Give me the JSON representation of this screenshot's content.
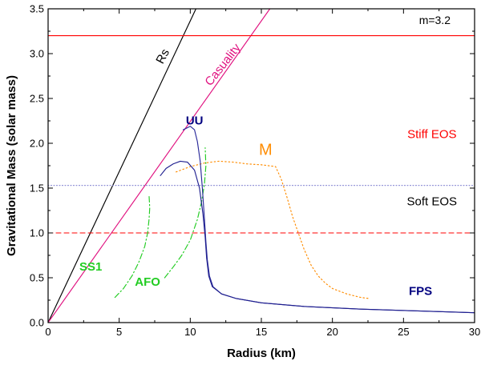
{
  "chart_data": {
    "type": "line",
    "xlabel": "Radius (km)",
    "ylabel": "Gravitational Mass (solar mass)",
    "xlim": [
      0,
      30
    ],
    "ylim": [
      0,
      3.5
    ],
    "xticks": [
      0,
      5,
      10,
      15,
      20,
      25,
      30
    ],
    "yticks": [
      0.0,
      0.5,
      1.0,
      1.5,
      2.0,
      2.5,
      3.0,
      3.5
    ],
    "xtick_labels": [
      "0",
      "5",
      "10",
      "15",
      "20",
      "25",
      "30"
    ],
    "ytick_labels": [
      "0.0",
      "0.5",
      "1.0",
      "1.5",
      "2.0",
      "2.5",
      "3.0",
      "3.5"
    ],
    "colors": {
      "black": "#000000",
      "red": "#ff0000",
      "causality": "#e0107f",
      "navy": "#000080",
      "green": "#22cc22",
      "orange": "#ff8c00",
      "purple": "#8080d0",
      "uu": "#2a2a9a",
      "fps": "#1f1f8f"
    },
    "series": [
      {
        "name": "Rs",
        "color_key": "black",
        "dash": "",
        "points": [
          [
            0,
            0
          ],
          [
            10.4,
            3.5
          ]
        ]
      },
      {
        "name": "Casuality",
        "color_key": "causality",
        "dash": "",
        "points": [
          [
            0,
            0
          ],
          [
            15.6,
            3.5
          ]
        ]
      },
      {
        "name": "m=3.2 line",
        "color_key": "red",
        "dash": "",
        "points": [
          [
            0,
            3.2
          ],
          [
            30,
            3.2
          ]
        ]
      },
      {
        "name": "1.0 line",
        "color_key": "red",
        "dash": "6,4",
        "points": [
          [
            0,
            1.0
          ],
          [
            30,
            1.0
          ]
        ]
      },
      {
        "name": "1.53 line",
        "color_key": "purple",
        "dash": "1,2.5",
        "points": [
          [
            0,
            1.53
          ],
          [
            30,
            1.53
          ]
        ]
      },
      {
        "name": "SS1",
        "color_key": "green",
        "dash": "7,3,1.5,3",
        "points": [
          [
            4.7,
            0.28
          ],
          [
            5.3,
            0.38
          ],
          [
            5.9,
            0.52
          ],
          [
            6.4,
            0.68
          ],
          [
            6.8,
            0.85
          ],
          [
            7.0,
            1.0
          ],
          [
            7.1,
            1.15
          ],
          [
            7.15,
            1.28
          ],
          [
            7.1,
            1.42
          ]
        ]
      },
      {
        "name": "AFO",
        "color_key": "green",
        "dash": "7,3,1.5,3",
        "points": [
          [
            8.2,
            0.5
          ],
          [
            8.8,
            0.62
          ],
          [
            9.4,
            0.75
          ],
          [
            10.0,
            0.92
          ],
          [
            10.5,
            1.15
          ],
          [
            10.8,
            1.35
          ],
          [
            11.0,
            1.55
          ],
          [
            11.1,
            1.75
          ],
          [
            11.05,
            1.95
          ]
        ]
      },
      {
        "name": "M",
        "color_key": "orange",
        "dash": "1.5,3",
        "points": [
          [
            9.0,
            1.68
          ],
          [
            10.0,
            1.74
          ],
          [
            11.0,
            1.78
          ],
          [
            12.0,
            1.8
          ],
          [
            13.0,
            1.79
          ],
          [
            14.0,
            1.77
          ],
          [
            15.0,
            1.76
          ],
          [
            16.0,
            1.74
          ],
          [
            16.4,
            1.6
          ],
          [
            16.8,
            1.4
          ],
          [
            17.2,
            1.18
          ],
          [
            17.6,
            1.0
          ],
          [
            18.0,
            0.82
          ],
          [
            18.5,
            0.64
          ],
          [
            19.0,
            0.52
          ],
          [
            19.5,
            0.44
          ],
          [
            20.0,
            0.38
          ],
          [
            21.0,
            0.32
          ],
          [
            22.0,
            0.28
          ],
          [
            22.5,
            0.27
          ]
        ]
      },
      {
        "name": "UU",
        "color_key": "uu",
        "dash": "",
        "points": [
          [
            9.5,
            2.15
          ],
          [
            10.0,
            2.19
          ],
          [
            10.3,
            2.15
          ],
          [
            10.5,
            2.02
          ],
          [
            10.7,
            1.8
          ],
          [
            10.85,
            1.5
          ],
          [
            11.0,
            1.15
          ],
          [
            11.1,
            0.9
          ],
          [
            11.2,
            0.7
          ],
          [
            11.35,
            0.52
          ],
          [
            11.6,
            0.4
          ],
          [
            12.2,
            0.32
          ],
          [
            13.2,
            0.27
          ],
          [
            15.0,
            0.22
          ],
          [
            18.0,
            0.18
          ],
          [
            22.0,
            0.15
          ],
          [
            26.0,
            0.13
          ],
          [
            30.0,
            0.11
          ]
        ]
      },
      {
        "name": "FPS",
        "color_key": "fps",
        "dash": "",
        "points": [
          [
            7.9,
            1.64
          ],
          [
            8.3,
            1.72
          ],
          [
            8.8,
            1.77
          ],
          [
            9.3,
            1.8
          ],
          [
            9.8,
            1.79
          ],
          [
            10.3,
            1.7
          ],
          [
            10.65,
            1.5
          ],
          [
            10.9,
            1.2
          ],
          [
            11.05,
            0.95
          ],
          [
            11.15,
            0.72
          ],
          [
            11.3,
            0.52
          ],
          [
            11.55,
            0.4
          ],
          [
            12.2,
            0.32
          ],
          [
            13.2,
            0.27
          ],
          [
            15.0,
            0.22
          ],
          [
            18.0,
            0.18
          ],
          [
            22.0,
            0.15
          ],
          [
            26.0,
            0.13
          ],
          [
            30.0,
            0.11
          ]
        ]
      }
    ],
    "annotations": [
      {
        "id": "rs",
        "text": "Rs",
        "x": 8.3,
        "y": 2.95,
        "color_key": "black",
        "size": 15,
        "weight": "normal",
        "rotate": -62
      },
      {
        "id": "casuality",
        "text": "Casuality",
        "x": 12.5,
        "y": 2.85,
        "color_key": "causality",
        "size": 15,
        "weight": "normal",
        "rotate": -52
      },
      {
        "id": "m32",
        "text": "m=3.2",
        "x": 27.2,
        "y": 3.33,
        "color_key": "black",
        "size": 14,
        "weight": "normal",
        "rotate": 0
      },
      {
        "id": "stiff",
        "text": "Stiff EOS",
        "x": 27.0,
        "y": 2.06,
        "color_key": "red",
        "size": 15,
        "weight": "normal",
        "rotate": 0
      },
      {
        "id": "soft",
        "text": "Soft EOS",
        "x": 27.0,
        "y": 1.31,
        "color_key": "black",
        "size": 15,
        "weight": "normal",
        "rotate": 0
      },
      {
        "id": "uu",
        "text": "UU",
        "x": 10.3,
        "y": 2.21,
        "color_key": "navy",
        "size": 15,
        "weight": "bold",
        "rotate": 0
      },
      {
        "id": "m",
        "text": "M",
        "x": 15.3,
        "y": 1.87,
        "color_key": "orange",
        "size": 20,
        "weight": "normal",
        "rotate": 0
      },
      {
        "id": "ss1",
        "text": "SS1",
        "x": 3.0,
        "y": 0.58,
        "color_key": "green",
        "size": 15,
        "weight": "bold",
        "rotate": 0
      },
      {
        "id": "afo",
        "text": "AFO",
        "x": 7.0,
        "y": 0.41,
        "color_key": "green",
        "size": 15,
        "weight": "bold",
        "rotate": 0
      },
      {
        "id": "fps",
        "text": "FPS",
        "x": 26.2,
        "y": 0.31,
        "color_key": "navy",
        "size": 15,
        "weight": "bold",
        "rotate": 0
      }
    ]
  }
}
